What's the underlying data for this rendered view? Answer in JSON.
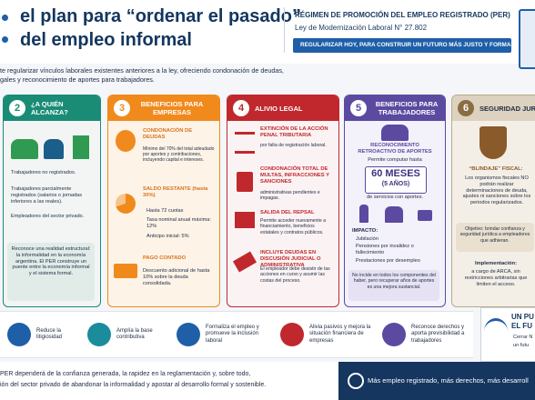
{
  "header": {
    "title_line1": "el plan para “ordenar el pasado”",
    "title_line2": "del empleo informal",
    "regime": "RÉGIMEN DE PROMOCIÓN DEL EMPLEO REGISTRADO (PER)",
    "law": "Ley de Modernización Laboral N° 27.802",
    "banner": "REGULARIZAR HOY, PARA CONSTRUIR UN FUTURO MÁS JUSTO Y FORMAL"
  },
  "intro": [
    "te regularizar vínculos laborales existentes anteriores a la ley, ofreciendo condonación de deudas,",
    "gales y reconocimiento de aportes para trabajadores."
  ],
  "sections": [
    {
      "number": "2",
      "title": "¿A QUIÉN ALCANZA?",
      "items": [
        "Trabajadores no registrados.",
        "Trabajadores parcialmente registrados (salarios o jornadas inferiores a las reales).",
        "Empleadores del sector privado."
      ],
      "note": "Reconoce una realidad estructural: la informalidad en la economía argentina. El PER construye un puente entre la economía informal y el sistema formal."
    },
    {
      "number": "3",
      "title": "BENEFICIOS PARA EMPRESAS",
      "blocks": [
        {
          "heading": "CONDONACIÓN DE DEUDAS",
          "text": "Mínimo del 70% del total adeudado por aportes y contribuciones, incluyendo capital e intereses."
        },
        {
          "heading": "SALDO RESTANTE (hasta 30%)",
          "list": [
            "Hasta 72 cuotas",
            "Tasa nominal anual máxima: 12%",
            "Anticipo inicial: 5%"
          ]
        },
        {
          "heading": "PAGO CONTADO",
          "text": "Descuento adicional de hasta 10% sobre la deuda consolidada."
        }
      ]
    },
    {
      "number": "4",
      "title": "ALIVIO LEGAL",
      "blocks": [
        {
          "heading": "EXTINCIÓN DE LA ACCIÓN PENAL TRIBUTARIA",
          "text": "por falta de registración laboral."
        },
        {
          "heading": "CONDONACIÓN TOTAL DE MULTAS, INFRACCIONES Y SANCIONES",
          "text": "administrativas pendientes e impagas."
        },
        {
          "heading": "SALIDA DEL REPSAL",
          "text": "Permite acceder nuevamente a financiamiento, beneficios estatales y contratos públicos."
        },
        {
          "heading": "INCLUYE DEUDAS EN DISCUSIÓN JUDICIAL O ADMINISTRATIVA",
          "text": "El empleador debe desistir de las acciones en curso y asumir las costas del proceso."
        }
      ]
    },
    {
      "number": "5",
      "title": "BENEFICIOS PARA TRABAJADORES",
      "recognition": "RECONOCIMIENTO RETROACTIVO DE APORTES",
      "allows": "Permite computar hasta",
      "months": "60 MESES",
      "years": "(5 AÑOS)",
      "services": "de servicios con aportes.",
      "impact_title": "IMPACTO:",
      "impact": [
        "Jubilación",
        "Pensiones por invalidez o fallecimiento",
        "Prestaciones por desempleo"
      ],
      "note": "No incide en todos los componentes del haber, pero recuperar años de aportes es una mejora sustancial."
    },
    {
      "number": "6",
      "title": "SEGURIDAD JURÍDIC",
      "shield": "“BLINDAJE” FISCAL:",
      "text": "Los organismos fiscales NO podrán realizar determinaciones de deuda, ajustes ni sanciones sobre los periodos regularizados.",
      "objective": "Objetivo: brindar confianza y seguridad jurídica a empleadores que adhieran.",
      "impl_title": "Implementación:",
      "impl": "a cargo de ARCA, sin restricciones arbitrarias que limiten el acceso."
    }
  ],
  "outcomes": [
    "Reduce la litigiosidad",
    "Amplía la base contributiva",
    "Formaliza el empleo y promueve la inclusión laboral",
    "Alivia pasivos y mejora la situación financiera de empresas",
    "Reconoce derechos y aporta previsibilidad a trabajadores"
  ],
  "side": {
    "title_line1": "UN PU",
    "title_line2": "EL FU",
    "line1": "Cerrar N",
    "line2": "un futu"
  },
  "footer": {
    "line1": "PER dependerá de la confianza generada, la rapidez en la reglamentación y, sobre todo,",
    "line2": "ión del sector privado de abandonar la informalidad y apostar al desarrollo formal y sostenible.",
    "tagline": "Más empleo registrado, más derechos, más desarroll"
  }
}
